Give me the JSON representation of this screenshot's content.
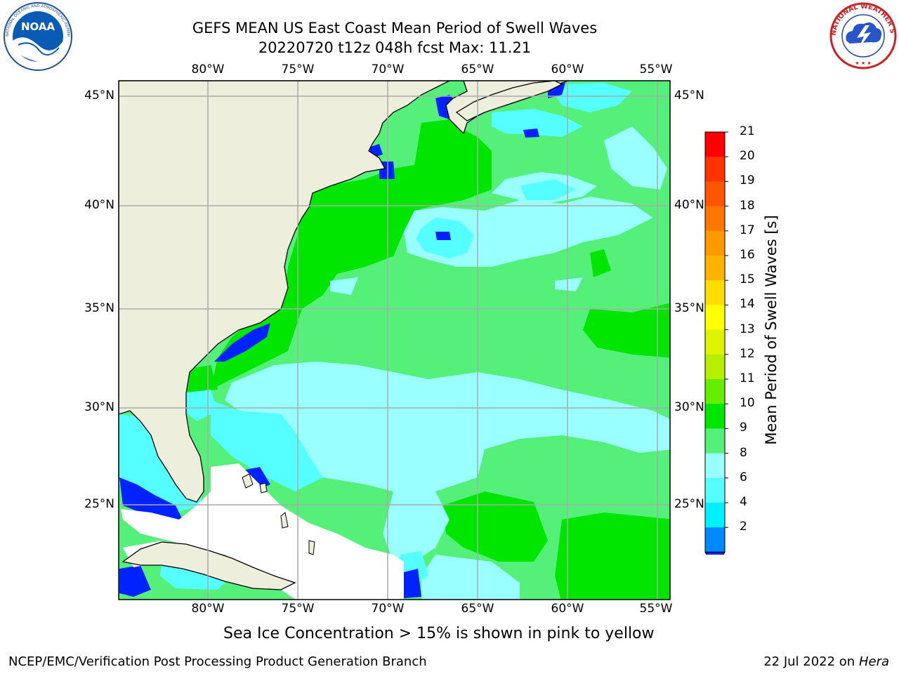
{
  "title_line1": "GEFS MEAN US East Coast Mean Period of Swell Waves",
  "title_line2": "20220720 t12z 048h fcst   Max: 11.21",
  "lon_labels": [
    "80°W",
    "75°W",
    "70°W",
    "65°W",
    "60°W",
    "55°W"
  ],
  "lat_labels": [
    "45°N",
    "40°N",
    "35°N",
    "30°N",
    "25°N"
  ],
  "colorbar": {
    "title": "Mean Period of Swell Waves [s]",
    "ticks": [
      "21",
      "20",
      "19",
      "18",
      "17",
      "16",
      "15",
      "14",
      "13",
      "12",
      "11",
      "10",
      "9",
      "8",
      "6",
      "4",
      "2"
    ],
    "colors": [
      "#ff0000",
      "#ff3300",
      "#ff5500",
      "#ff7700",
      "#ff9900",
      "#ffb300",
      "#ffdd00",
      "#ffff00",
      "#ddf500",
      "#b8ee00",
      "#66ee00",
      "#00e600",
      "#55f07a",
      "#99ffff",
      "#55ffff",
      "#00f0ff",
      "#0088ff"
    ],
    "extend_color": "#0022ff"
  },
  "colors": {
    "land": "#eeeedd",
    "grid": "#aaaaaa",
    "ice_note": "pink to yellow"
  },
  "sea_ice_note": "Sea Ice Concentration > 15% is shown in pink to yellow",
  "footer_left": "NCEP/EMC/Verification Post Processing Product Generation Branch",
  "footer_right_date": "22 Jul 2022 on ",
  "footer_right_host": "Hera",
  "logos": {
    "left": "NOAA",
    "right": "NATIONAL WEATHER SERVICE"
  }
}
